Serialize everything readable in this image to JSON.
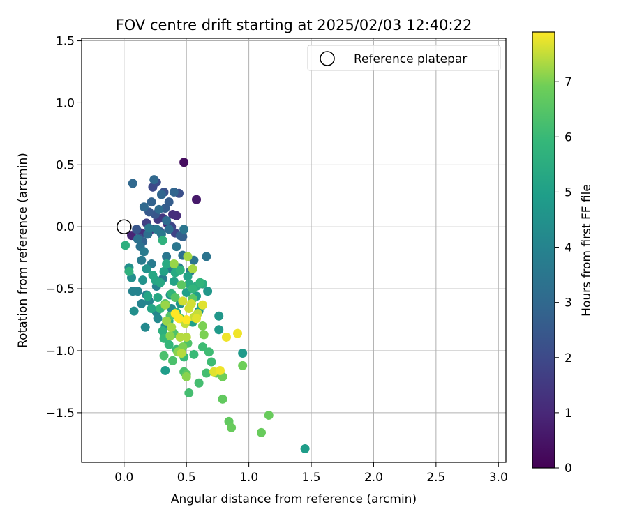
{
  "chart_data": {
    "type": "scatter",
    "title": "FOV centre drift starting at 2025/02/03 12:40:22",
    "xlabel": "Angular distance from reference (arcmin)",
    "ylabel": "Rotation from reference (arcmin)",
    "xlim": [
      -0.34,
      3.06
    ],
    "ylim": [
      -1.9,
      1.52
    ],
    "xticks": [
      "0.0",
      "0.5",
      "1.0",
      "1.5",
      "2.0",
      "2.5",
      "3.0"
    ],
    "yticks": [
      "1.5",
      "1.0",
      "0.5",
      "0.0",
      "−0.5",
      "−1.0",
      "−1.5"
    ],
    "grid": true,
    "legend": {
      "placement": "top-right",
      "label": "Reference platepar"
    },
    "reference": {
      "x": 0.0,
      "y": 0.0
    },
    "colorbar": {
      "label": "Hours from first FF file",
      "colormap": "viridis",
      "range": [
        0,
        7.9
      ],
      "ticks": [
        "0",
        "1",
        "2",
        "3",
        "4",
        "5",
        "6",
        "7"
      ]
    },
    "series": [
      {
        "points": [
          [
            0.48,
            0.52,
            0.3
          ],
          [
            0.58,
            0.22,
            0.6
          ],
          [
            0.06,
            -0.07,
            0.9
          ],
          [
            0.35,
            0.02,
            1.0
          ],
          [
            0.42,
            0.09,
            1.1
          ],
          [
            0.39,
            0.1,
            1.2
          ],
          [
            0.14,
            -0.05,
            1.3
          ],
          [
            0.31,
            0.07,
            1.4
          ],
          [
            0.27,
            0.06,
            1.5
          ],
          [
            0.22,
            -0.02,
            1.6
          ],
          [
            0.18,
            0.03,
            1.7
          ],
          [
            0.41,
            -0.05,
            1.8
          ],
          [
            0.38,
            0.0,
            1.9
          ],
          [
            0.23,
            0.32,
            2.0
          ],
          [
            0.26,
            0.36,
            2.1
          ],
          [
            0.44,
            0.27,
            2.2
          ],
          [
            0.32,
            0.28,
            2.3
          ],
          [
            0.12,
            -0.09,
            2.3
          ],
          [
            0.1,
            -0.02,
            2.4
          ],
          [
            0.25,
            0.1,
            2.4
          ],
          [
            0.2,
            0.12,
            2.5
          ],
          [
            0.29,
            -0.04,
            2.5
          ],
          [
            0.33,
            0.15,
            2.6
          ],
          [
            0.36,
            0.2,
            2.6
          ],
          [
            0.45,
            -0.07,
            2.7
          ],
          [
            0.47,
            -0.08,
            2.7
          ],
          [
            0.15,
            -0.12,
            2.8
          ],
          [
            0.22,
            0.2,
            2.8
          ],
          [
            0.3,
            0.26,
            2.9
          ],
          [
            0.4,
            0.28,
            2.9
          ],
          [
            0.07,
            0.35,
            3.0
          ],
          [
            0.24,
            0.38,
            3.0
          ],
          [
            0.16,
            0.16,
            3.0
          ],
          [
            0.28,
            0.14,
            3.1
          ],
          [
            0.34,
            0.05,
            3.1
          ],
          [
            0.36,
            -0.02,
            3.2
          ],
          [
            0.19,
            -0.06,
            3.2
          ],
          [
            0.11,
            -0.1,
            3.3
          ],
          [
            0.13,
            -0.16,
            3.3
          ],
          [
            0.47,
            -0.23,
            3.3
          ],
          [
            0.56,
            -0.27,
            3.4
          ],
          [
            0.66,
            -0.24,
            3.4
          ],
          [
            0.53,
            -0.36,
            3.4
          ],
          [
            0.48,
            -0.02,
            3.5
          ],
          [
            0.42,
            -0.16,
            3.5
          ],
          [
            0.34,
            -0.24,
            3.5
          ],
          [
            0.3,
            -0.06,
            3.6
          ],
          [
            0.26,
            -0.02,
            3.6
          ],
          [
            0.2,
            -0.01,
            3.6
          ],
          [
            0.16,
            -0.2,
            3.7
          ],
          [
            0.14,
            -0.27,
            3.7
          ],
          [
            0.22,
            -0.3,
            3.7
          ],
          [
            0.38,
            -0.34,
            3.8
          ],
          [
            0.44,
            -0.33,
            3.8
          ],
          [
            0.31,
            -0.42,
            3.8
          ],
          [
            0.26,
            -0.48,
            3.9
          ],
          [
            0.18,
            -0.55,
            3.9
          ],
          [
            0.11,
            -0.52,
            4.0
          ],
          [
            0.07,
            -0.52,
            4.0
          ],
          [
            0.14,
            -0.62,
            4.0
          ],
          [
            0.2,
            -0.6,
            4.1
          ],
          [
            0.26,
            -0.69,
            4.1
          ],
          [
            0.17,
            -0.81,
            4.2
          ],
          [
            0.27,
            -0.74,
            4.2
          ],
          [
            0.33,
            -0.8,
            4.3
          ],
          [
            0.38,
            -0.66,
            4.3
          ],
          [
            0.08,
            -0.68,
            4.4
          ],
          [
            0.06,
            -0.41,
            4.4
          ],
          [
            0.04,
            -0.33,
            4.4
          ],
          [
            0.15,
            -0.43,
            4.5
          ],
          [
            0.18,
            -0.34,
            4.5
          ],
          [
            0.37,
            -0.55,
            4.5
          ],
          [
            0.45,
            -0.62,
            4.6
          ],
          [
            0.6,
            -0.68,
            4.6
          ],
          [
            0.67,
            -0.52,
            4.7
          ],
          [
            0.76,
            -0.72,
            4.7
          ],
          [
            0.76,
            -0.83,
            4.8
          ],
          [
            0.95,
            -1.02,
            4.8
          ],
          [
            1.45,
            -1.79,
            4.9
          ],
          [
            0.33,
            -1.16,
            4.9
          ],
          [
            0.55,
            -0.77,
            5.0
          ],
          [
            0.5,
            -0.53,
            5.0
          ],
          [
            0.58,
            -0.56,
            5.0
          ],
          [
            0.51,
            -0.4,
            5.1
          ],
          [
            0.4,
            -0.44,
            5.1
          ],
          [
            0.32,
            -0.36,
            5.1
          ],
          [
            0.25,
            -0.43,
            5.2
          ],
          [
            0.19,
            -0.56,
            5.2
          ],
          [
            0.22,
            -0.66,
            5.2
          ],
          [
            0.27,
            -0.57,
            5.3
          ],
          [
            0.29,
            -0.45,
            5.3
          ],
          [
            0.23,
            -0.39,
            5.3
          ],
          [
            0.34,
            -0.3,
            5.4
          ],
          [
            0.41,
            -0.37,
            5.4
          ],
          [
            0.52,
            -0.46,
            5.4
          ],
          [
            0.58,
            -0.48,
            5.5
          ],
          [
            0.63,
            -0.46,
            5.5
          ],
          [
            0.62,
            -0.64,
            5.5
          ],
          [
            0.42,
            -0.69,
            5.6
          ],
          [
            0.36,
            -0.76,
            5.6
          ],
          [
            0.31,
            -0.84,
            5.6
          ],
          [
            0.01,
            -0.15,
            5.6
          ],
          [
            0.04,
            -0.36,
            5.7
          ],
          [
            0.31,
            -0.11,
            5.7
          ],
          [
            0.45,
            -0.35,
            5.7
          ],
          [
            0.55,
            -0.5,
            5.8
          ],
          [
            0.61,
            -0.45,
            5.8
          ],
          [
            0.38,
            -0.54,
            5.8
          ],
          [
            0.29,
            -0.66,
            5.9
          ],
          [
            0.32,
            -0.9,
            5.9
          ],
          [
            0.36,
            -0.95,
            5.9
          ],
          [
            0.42,
            -0.99,
            6.0
          ],
          [
            0.48,
            -1.05,
            6.0
          ],
          [
            0.56,
            -1.03,
            6.0
          ],
          [
            0.63,
            -0.97,
            6.1
          ],
          [
            0.68,
            -1.01,
            6.1
          ],
          [
            0.7,
            -1.09,
            6.1
          ],
          [
            0.66,
            -1.18,
            6.2
          ],
          [
            0.6,
            -1.26,
            6.2
          ],
          [
            0.52,
            -1.34,
            6.2
          ],
          [
            0.48,
            -1.17,
            6.3
          ],
          [
            0.39,
            -1.08,
            6.3
          ],
          [
            0.32,
            -1.04,
            6.3
          ],
          [
            0.4,
            -0.86,
            6.4
          ],
          [
            0.51,
            -0.94,
            6.4
          ],
          [
            0.45,
            -0.74,
            6.4
          ],
          [
            0.37,
            -0.72,
            6.5
          ],
          [
            0.33,
            -0.62,
            6.5
          ],
          [
            0.41,
            -0.57,
            6.5
          ],
          [
            0.46,
            -0.47,
            6.6
          ],
          [
            0.55,
            -0.58,
            6.6
          ],
          [
            0.5,
            -1.19,
            6.6
          ],
          [
            0.74,
            -1.18,
            6.7
          ],
          [
            0.79,
            -1.39,
            6.7
          ],
          [
            0.84,
            -1.57,
            6.7
          ],
          [
            0.86,
            -1.62,
            6.8
          ],
          [
            1.1,
            -1.66,
            6.8
          ],
          [
            1.16,
            -1.52,
            6.8
          ],
          [
            0.95,
            -1.12,
            6.9
          ],
          [
            0.79,
            -1.21,
            6.9
          ],
          [
            0.63,
            -0.8,
            7.0
          ],
          [
            0.64,
            -0.87,
            7.0
          ],
          [
            0.47,
            -0.97,
            7.0
          ],
          [
            0.5,
            -1.21,
            7.1
          ],
          [
            0.43,
            -1.01,
            7.1
          ],
          [
            0.37,
            -0.88,
            7.1
          ],
          [
            0.34,
            -0.76,
            7.2
          ],
          [
            0.33,
            -0.63,
            7.2
          ],
          [
            0.4,
            -0.3,
            7.2
          ],
          [
            0.51,
            -0.24,
            7.3
          ],
          [
            0.55,
            -0.34,
            7.3
          ],
          [
            0.38,
            -0.81,
            7.3
          ],
          [
            0.45,
            -0.89,
            7.4
          ],
          [
            0.5,
            -0.89,
            7.4
          ],
          [
            0.46,
            -1.02,
            7.4
          ],
          [
            0.49,
            -0.78,
            7.5
          ],
          [
            0.56,
            -0.73,
            7.5
          ],
          [
            0.59,
            -0.7,
            7.5
          ],
          [
            0.54,
            -0.62,
            7.6
          ],
          [
            0.47,
            -0.6,
            7.6
          ],
          [
            0.52,
            -0.66,
            7.6
          ],
          [
            0.58,
            -0.74,
            7.7
          ],
          [
            0.63,
            -0.63,
            7.7
          ],
          [
            0.72,
            -1.17,
            7.7
          ],
          [
            0.77,
            -1.16,
            7.8
          ],
          [
            0.82,
            -0.89,
            7.8
          ],
          [
            0.91,
            -0.86,
            7.8
          ],
          [
            0.44,
            -0.74,
            7.9
          ],
          [
            0.41,
            -0.7,
            7.9
          ],
          [
            0.5,
            -0.75,
            7.9
          ]
        ]
      }
    ]
  }
}
